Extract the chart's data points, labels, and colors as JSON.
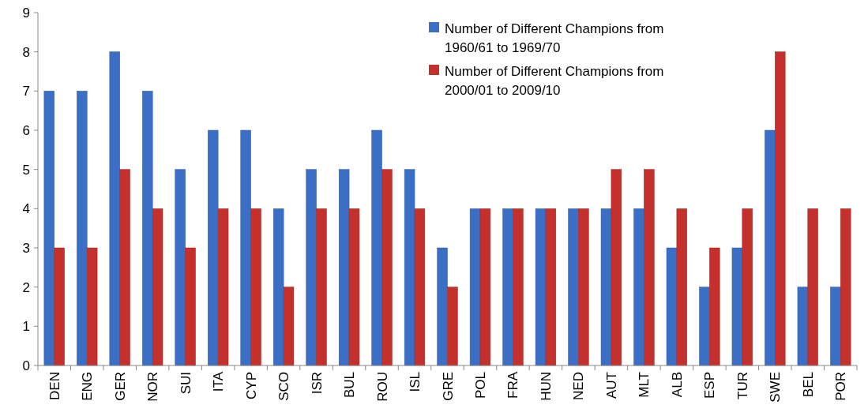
{
  "chart_data": {
    "type": "bar",
    "categories": [
      "DEN",
      "ENG",
      "GER",
      "NOR",
      "SUI",
      "ITA",
      "CYP",
      "SCO",
      "ISR",
      "BUL",
      "ROU",
      "ISL",
      "GRE",
      "POL",
      "FRA",
      "HUN",
      "NED",
      "AUT",
      "MLT",
      "ALB",
      "ESP",
      "TUR",
      "SWE",
      "BEL",
      "POR"
    ],
    "series": [
      {
        "name": "Number of Different Champions from 1960/61 to 1969/70",
        "color": "#3b6fc6",
        "values": [
          7,
          7,
          8,
          7,
          5,
          6,
          6,
          4,
          5,
          5,
          6,
          5,
          3,
          4,
          4,
          4,
          4,
          4,
          4,
          3,
          2,
          3,
          6,
          2,
          2
        ]
      },
      {
        "name": "Number of Different Champions from 2000/01 to 2009/10",
        "color": "#c4302b",
        "values": [
          3,
          3,
          5,
          4,
          3,
          4,
          4,
          2,
          4,
          4,
          5,
          4,
          2,
          4,
          4,
          4,
          4,
          5,
          5,
          4,
          3,
          4,
          8,
          4,
          4
        ]
      }
    ],
    "ylim": [
      0,
      9
    ],
    "yticks": [
      0,
      1,
      2,
      3,
      4,
      5,
      6,
      7,
      8,
      9
    ],
    "legend": "top right"
  }
}
